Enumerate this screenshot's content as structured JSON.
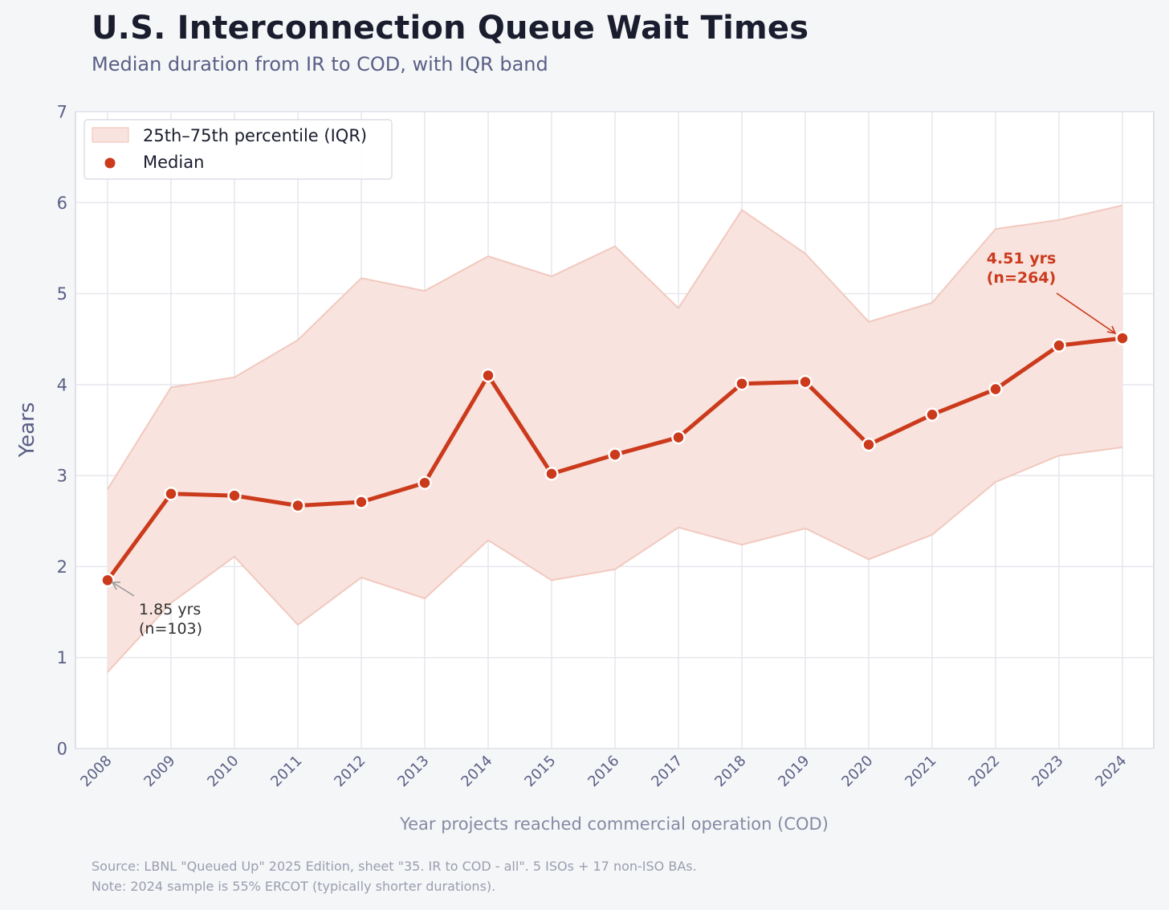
{
  "title": "U.S. Interconnection Queue Wait Times",
  "subtitle": "Median duration from IR to COD, with IQR band",
  "footnote": {
    "source": "Source: LBNL \"Queued Up\" 2025 Edition, sheet \"35. IR to COD - all\". 5 ISOs + 17 non-ISO BAs.",
    "note": "Note: 2024 sample is 55% ERCOT (typically shorter durations)."
  },
  "colors": {
    "median": "#cc3a1c",
    "band_fill": "#f8e3de",
    "band_edge": "#f2c9be",
    "grid": "#e6e7ed",
    "plot_bg": "#ffffff",
    "axis_frame": "#d5d7e0"
  },
  "chart_data": {
    "type": "line",
    "title": "U.S. Interconnection Queue Wait Times",
    "xlabel": "Year projects reached commercial operation (COD)",
    "ylabel": "Years",
    "ylim": [
      0,
      7
    ],
    "yticks": [
      0,
      1,
      2,
      3,
      4,
      5,
      6,
      7
    ],
    "grid": true,
    "legend_position": "top-left",
    "categories": [
      "2008",
      "2009",
      "2010",
      "2011",
      "2012",
      "2013",
      "2014",
      "2015",
      "2016",
      "2017",
      "2018",
      "2019",
      "2020",
      "2021",
      "2022",
      "2023",
      "2024"
    ],
    "series": [
      {
        "name": "Median",
        "values": [
          1.85,
          2.8,
          2.78,
          2.67,
          2.71,
          2.92,
          4.1,
          3.02,
          3.23,
          3.42,
          4.01,
          4.03,
          3.34,
          3.67,
          3.95,
          4.43,
          4.51
        ]
      },
      {
        "name": "25th–75th percentile (IQR)",
        "lower": [
          0.84,
          1.6,
          2.11,
          1.36,
          1.88,
          1.65,
          2.29,
          1.85,
          1.97,
          2.43,
          2.24,
          2.42,
          2.08,
          2.35,
          2.93,
          3.22,
          3.31
        ],
        "upper": [
          2.85,
          3.97,
          4.08,
          4.49,
          5.17,
          5.03,
          5.41,
          5.19,
          5.52,
          4.84,
          5.92,
          5.44,
          4.69,
          4.9,
          5.71,
          5.81,
          5.97
        ]
      }
    ],
    "annotations": [
      {
        "category": "2008",
        "line1": "1.85 yrs",
        "line2": "(n=103)"
      },
      {
        "category": "2024",
        "line1": "4.51 yrs",
        "line2": "(n=264)"
      }
    ]
  }
}
